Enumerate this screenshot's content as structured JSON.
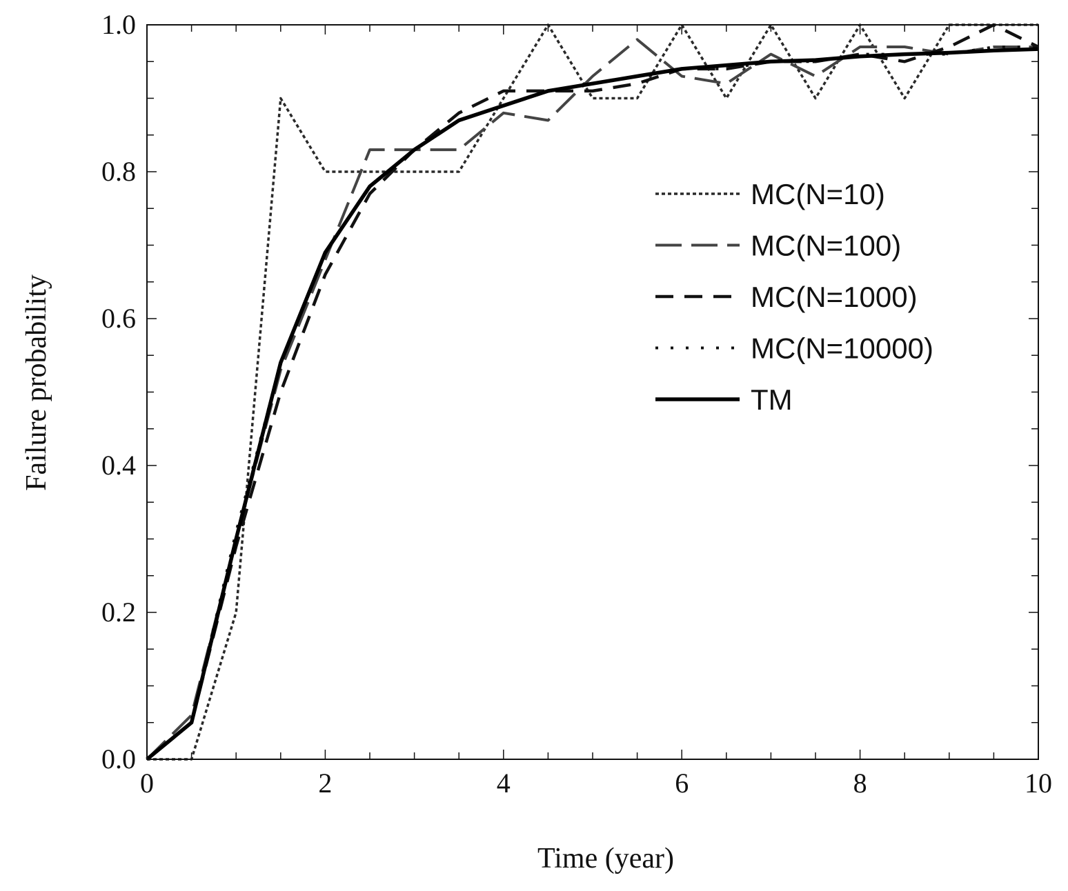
{
  "chart_data": {
    "type": "line",
    "title": "",
    "xlabel": "Time (year)",
    "ylabel": "Failure probability",
    "xlim": [
      0,
      10
    ],
    "ylim": [
      0,
      1.0
    ],
    "x_ticks": [
      0,
      2,
      4,
      6,
      8,
      10
    ],
    "x_tick_labels": [
      "0",
      "2",
      "4",
      "6",
      "8",
      "10"
    ],
    "y_ticks": [
      0,
      0.2,
      0.4,
      0.6,
      0.8,
      1.0
    ],
    "y_tick_labels": [
      "0.0",
      "0.2",
      "0.4",
      "0.6",
      "0.8",
      "1.0"
    ],
    "grid": false,
    "legend_position": "right-middle",
    "series": [
      {
        "name": "MC(N=10)",
        "style": "dotted",
        "color": "#2a2a2a",
        "x": [
          0,
          0.5,
          1.0,
          1.5,
          2.0,
          2.5,
          3.0,
          3.5,
          4.0,
          4.5,
          5.0,
          5.5,
          6.0,
          6.5,
          7.0,
          7.5,
          8.0,
          8.5,
          9.0,
          9.5,
          10.0
        ],
        "values": [
          0.0,
          0.0,
          0.2,
          0.9,
          0.8,
          0.8,
          0.8,
          0.8,
          0.9,
          1.0,
          0.9,
          0.9,
          1.0,
          0.9,
          1.0,
          0.9,
          1.0,
          0.9,
          1.0,
          1.0,
          1.0
        ]
      },
      {
        "name": "MC(N=100)",
        "style": "long-dash",
        "color": "#444444",
        "x": [
          0,
          0.5,
          1.0,
          1.5,
          2.0,
          2.5,
          3.0,
          3.5,
          4.0,
          4.5,
          5.0,
          5.5,
          6.0,
          6.5,
          7.0,
          7.5,
          8.0,
          8.5,
          9.0,
          9.5,
          10.0
        ],
        "values": [
          0.0,
          0.06,
          0.3,
          0.53,
          0.68,
          0.83,
          0.83,
          0.83,
          0.88,
          0.87,
          0.93,
          0.98,
          0.93,
          0.92,
          0.96,
          0.93,
          0.97,
          0.97,
          0.96,
          0.97,
          0.97
        ]
      },
      {
        "name": "MC(N=1000)",
        "style": "dashed",
        "color": "#111111",
        "x": [
          0,
          0.5,
          1.0,
          1.5,
          2.0,
          2.5,
          3.0,
          3.5,
          4.0,
          4.5,
          5.0,
          5.5,
          6.0,
          6.5,
          7.0,
          7.5,
          8.0,
          8.5,
          9.0,
          9.5,
          10.0
        ],
        "values": [
          0.0,
          0.05,
          0.29,
          0.5,
          0.66,
          0.77,
          0.83,
          0.88,
          0.91,
          0.91,
          0.91,
          0.92,
          0.94,
          0.94,
          0.95,
          0.95,
          0.96,
          0.95,
          0.97,
          1.0,
          0.97
        ]
      },
      {
        "name": "MC(N=10000)",
        "style": "sparse-dotted",
        "color": "#111111",
        "x": [
          0,
          0.5,
          1.0,
          1.5,
          2.0,
          2.5,
          3.0,
          3.5,
          4.0,
          4.5,
          5.0,
          5.5,
          6.0,
          6.5,
          7.0,
          7.5,
          8.0,
          8.5,
          9.0,
          9.5,
          10.0
        ],
        "values": [
          0.0,
          0.05,
          0.31,
          0.54,
          0.69,
          0.78,
          0.83,
          0.87,
          0.89,
          0.91,
          0.92,
          0.93,
          0.94,
          0.94,
          0.95,
          0.95,
          0.96,
          0.96,
          0.96,
          0.97,
          0.97
        ]
      },
      {
        "name": "TM",
        "style": "solid",
        "color": "#000000",
        "x": [
          0,
          0.5,
          1.0,
          1.5,
          2.0,
          2.5,
          3.0,
          3.5,
          4.0,
          4.5,
          5.0,
          5.5,
          6.0,
          6.5,
          7.0,
          7.5,
          8.0,
          8.5,
          9.0,
          9.5,
          10.0
        ],
        "values": [
          0.0,
          0.05,
          0.3,
          0.54,
          0.69,
          0.78,
          0.83,
          0.87,
          0.89,
          0.91,
          0.92,
          0.93,
          0.94,
          0.945,
          0.95,
          0.952,
          0.957,
          0.96,
          0.962,
          0.965,
          0.967
        ]
      }
    ]
  }
}
